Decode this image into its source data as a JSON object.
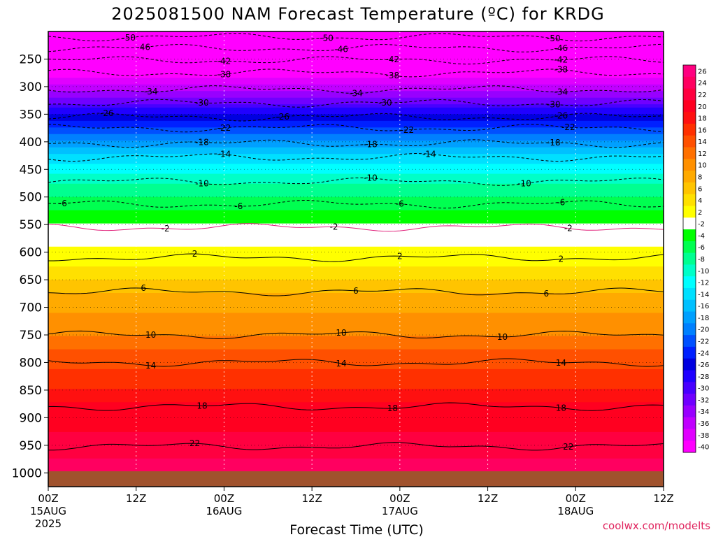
{
  "chart_data": {
    "type": "heatmap",
    "title": "2025081500 NAM Forecast Temperature (ºC) for KRDG",
    "xlabel": "Forecast Time (UTC)",
    "ylabel": "",
    "x_ticks": [
      {
        "hour": 0,
        "label": "00Z",
        "sub": "15AUG",
        "sub2": "2025"
      },
      {
        "hour": 12,
        "label": "12Z",
        "sub": "",
        "sub2": ""
      },
      {
        "hour": 24,
        "label": "00Z",
        "sub": "16AUG",
        "sub2": ""
      },
      {
        "hour": 36,
        "label": "12Z",
        "sub": "",
        "sub2": ""
      },
      {
        "hour": 48,
        "label": "00Z",
        "sub": "17AUG",
        "sub2": ""
      },
      {
        "hour": 60,
        "label": "12Z",
        "sub": "",
        "sub2": ""
      },
      {
        "hour": 72,
        "label": "00Z",
        "sub": "18AUG",
        "sub2": ""
      },
      {
        "hour": 84,
        "label": "12Z",
        "sub": "",
        "sub2": ""
      }
    ],
    "xlim": [
      0,
      84
    ],
    "y_ticks": [
      250,
      300,
      350,
      400,
      450,
      500,
      550,
      600,
      650,
      700,
      750,
      800,
      850,
      900,
      950,
      1000
    ],
    "ylim": [
      200,
      1025
    ],
    "pressure_levels": [
      200,
      225,
      250,
      275,
      300,
      325,
      350,
      375,
      400,
      425,
      450,
      475,
      500,
      525,
      550,
      575,
      600,
      625,
      650,
      675,
      700,
      725,
      750,
      775,
      800,
      825,
      850,
      875,
      900,
      925,
      950,
      975,
      1000
    ],
    "temperature_profile": [
      -52,
      -49,
      -45,
      -41,
      -36,
      -32,
      -27,
      -23,
      -19,
      -15,
      -12,
      -9,
      -7,
      -5,
      -3,
      -1,
      1,
      3,
      5,
      7,
      8,
      10,
      11,
      13,
      14,
      16,
      17,
      19,
      20,
      21,
      22,
      23,
      24
    ],
    "colorbar": {
      "labels": [
        26,
        24,
        22,
        20,
        18,
        16,
        14,
        12,
        10,
        8,
        6,
        4,
        2,
        -2,
        -4,
        -6,
        -8,
        -10,
        -12,
        -14,
        -16,
        -18,
        -20,
        -22,
        -24,
        -26,
        -28,
        -30,
        -32,
        -34,
        -36,
        -38,
        -40
      ],
      "colors": [
        "#ff0080",
        "#ff0060",
        "#ff0040",
        "#ff0020",
        "#ff1010",
        "#ff3000",
        "#ff5000",
        "#ff7000",
        "#ff9000",
        "#ffaa00",
        "#ffc400",
        "#ffe000",
        "#ffff00",
        "#ffffff",
        "#00ff00",
        "#00ff50",
        "#00ff90",
        "#00ffc8",
        "#00ffff",
        "#00e0ff",
        "#00c0ff",
        "#00a0ff",
        "#0080ff",
        "#0050ff",
        "#0020ff",
        "#0000e0",
        "#2000ff",
        "#4800ff",
        "#7000ff",
        "#9800ff",
        "#c000ff",
        "#e000ff",
        "#ff00ff"
      ]
    },
    "contours": [
      {
        "value": -50,
        "pressure": 210,
        "labels": [
          {
            "hour": 11,
            "text": "-50"
          },
          {
            "hour": 38,
            "text": "-50"
          },
          {
            "hour": 69,
            "text": "-50"
          }
        ]
      },
      {
        "value": -46,
        "pressure": 230,
        "labels": [
          {
            "hour": 13,
            "text": "-46"
          },
          {
            "hour": 40,
            "text": "-46"
          },
          {
            "hour": 70,
            "text": "-46"
          }
        ]
      },
      {
        "value": -42,
        "pressure": 252,
        "labels": [
          {
            "hour": 24,
            "text": "-42"
          },
          {
            "hour": 47,
            "text": "-42"
          },
          {
            "hour": 70,
            "text": "-42"
          }
        ]
      },
      {
        "value": -38,
        "pressure": 275,
        "labels": [
          {
            "hour": 24,
            "text": "-38"
          },
          {
            "hour": 47,
            "text": "-38"
          },
          {
            "hour": 70,
            "text": "-38"
          }
        ]
      },
      {
        "value": -34,
        "pressure": 305,
        "labels": [
          {
            "hour": 14,
            "text": "-34"
          },
          {
            "hour": 42,
            "text": "-34"
          },
          {
            "hour": 70,
            "text": "-34"
          }
        ]
      },
      {
        "value": -30,
        "pressure": 330,
        "labels": [
          {
            "hour": 21,
            "text": "-30"
          },
          {
            "hour": 46,
            "text": "-30"
          },
          {
            "hour": 69,
            "text": "-30"
          }
        ]
      },
      {
        "value": -26,
        "pressure": 355,
        "labels": [
          {
            "hour": 8,
            "text": "-26"
          },
          {
            "hour": 32,
            "text": "-26"
          },
          {
            "hour": 70,
            "text": "-26"
          }
        ]
      },
      {
        "value": -22,
        "pressure": 375,
        "labels": [
          {
            "hour": 24,
            "text": "-22"
          },
          {
            "hour": 49,
            "text": "-22"
          },
          {
            "hour": 71,
            "text": "-22"
          }
        ]
      },
      {
        "value": -18,
        "pressure": 403,
        "labels": [
          {
            "hour": 21,
            "text": "-18"
          },
          {
            "hour": 44,
            "text": "-18"
          },
          {
            "hour": 69,
            "text": "-18"
          }
        ]
      },
      {
        "value": -14,
        "pressure": 428,
        "labels": [
          {
            "hour": 24,
            "text": "-14"
          },
          {
            "hour": 52,
            "text": "-14"
          }
        ]
      },
      {
        "value": -10,
        "pressure": 472,
        "labels": [
          {
            "hour": 21,
            "text": "-10"
          },
          {
            "hour": 44,
            "text": "-10"
          },
          {
            "hour": 65,
            "text": "-10"
          }
        ]
      },
      {
        "value": -6,
        "pressure": 513,
        "labels": [
          {
            "hour": 2,
            "text": "-6"
          },
          {
            "hour": 26,
            "text": "-6"
          },
          {
            "hour": 48,
            "text": "-6"
          },
          {
            "hour": 70,
            "text": "-6"
          }
        ]
      },
      {
        "value": -2,
        "pressure": 555,
        "labels": [
          {
            "hour": 16,
            "text": "-2"
          },
          {
            "hour": 39,
            "text": "-2"
          },
          {
            "hour": 71,
            "text": "-2"
          }
        ]
      },
      {
        "value": 2,
        "pressure": 610,
        "labels": [
          {
            "hour": 20,
            "text": "2"
          },
          {
            "hour": 48,
            "text": "2"
          },
          {
            "hour": 70,
            "text": "2"
          }
        ]
      },
      {
        "value": 6,
        "pressure": 672,
        "labels": [
          {
            "hour": 13,
            "text": "6"
          },
          {
            "hour": 42,
            "text": "6"
          },
          {
            "hour": 68,
            "text": "6"
          }
        ]
      },
      {
        "value": 10,
        "pressure": 750,
        "labels": [
          {
            "hour": 14,
            "text": "10"
          },
          {
            "hour": 40,
            "text": "10"
          },
          {
            "hour": 62,
            "text": "10"
          }
        ]
      },
      {
        "value": 14,
        "pressure": 800,
        "labels": [
          {
            "hour": 14,
            "text": "14"
          },
          {
            "hour": 40,
            "text": "14"
          },
          {
            "hour": 70,
            "text": "14"
          }
        ]
      },
      {
        "value": 18,
        "pressure": 880,
        "labels": [
          {
            "hour": 21,
            "text": "18"
          },
          {
            "hour": 47,
            "text": "18"
          },
          {
            "hour": 70,
            "text": "18"
          }
        ]
      },
      {
        "value": 22,
        "pressure": 952,
        "labels": [
          {
            "hour": 20,
            "text": "22"
          },
          {
            "hour": 71,
            "text": "22"
          }
        ]
      }
    ],
    "grid": true,
    "legend": "right"
  },
  "credit": "coolwx.com/modelts"
}
